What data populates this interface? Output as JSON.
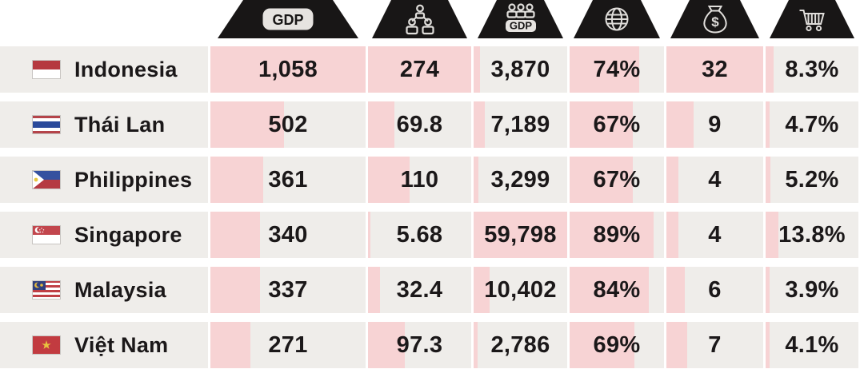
{
  "palette": {
    "page_bg": "#ffffff",
    "row_bg": "#efedea",
    "bar_pink": "#f7d3d4",
    "tab_black": "#181616",
    "icon_light": "#e0dedb",
    "text_dark": "#1b1819"
  },
  "header": {
    "tabs": [
      {
        "icon": "gdp-badge-icon",
        "badge_label": "GDP"
      },
      {
        "icon": "population-people-icon"
      },
      {
        "icon": "gdp-per-capita-icon",
        "badge_label": "GDP"
      },
      {
        "icon": "globe-icon"
      },
      {
        "icon": "money-bag-icon",
        "symbol": "$"
      },
      {
        "icon": "shopping-cart-icon"
      }
    ]
  },
  "columns": [
    {
      "id": "gdp",
      "type": "absolute",
      "max": 1058
    },
    {
      "id": "population",
      "type": "absolute",
      "max": 274
    },
    {
      "id": "gdp-per-capita",
      "type": "absolute",
      "max": 59798
    },
    {
      "id": "internet-percent",
      "type": "percent"
    },
    {
      "id": "billionaires",
      "type": "absolute",
      "max": 32
    },
    {
      "id": "ecommerce-percent",
      "type": "percent"
    }
  ],
  "rows": [
    {
      "country": "Indonesia",
      "flag": "indonesia-flag-icon",
      "flag_symbol": "flag-indonesia",
      "numeric": [
        1058,
        274,
        3870,
        74,
        32,
        8.3
      ],
      "display": [
        "1,058",
        "274",
        "3,870",
        "74%",
        "32",
        "8.3%"
      ]
    },
    {
      "country": "Thái Lan",
      "flag": "thailand-flag-icon",
      "flag_symbol": "flag-thailand",
      "numeric": [
        502,
        69.8,
        7189,
        67,
        9,
        4.7
      ],
      "display": [
        "502",
        "69.8",
        "7,189",
        "67%",
        "9",
        "4.7%"
      ]
    },
    {
      "country": "Philippines",
      "flag": "philippines-flag-icon",
      "flag_symbol": "flag-philippines",
      "numeric": [
        361,
        110,
        3299,
        67,
        4,
        5.2
      ],
      "display": [
        "361",
        "110",
        "3,299",
        "67%",
        "4",
        "5.2%"
      ]
    },
    {
      "country": "Singapore",
      "flag": "singapore-flag-icon",
      "flag_symbol": "flag-singapore",
      "numeric": [
        340,
        5.68,
        59798,
        89,
        4,
        13.8
      ],
      "display": [
        "340",
        "5.68",
        "59,798",
        "89%",
        "4",
        "13.8%"
      ]
    },
    {
      "country": "Malaysia",
      "flag": "malaysia-flag-icon",
      "flag_symbol": "flag-malaysia",
      "numeric": [
        337,
        32.4,
        10402,
        84,
        6,
        3.9
      ],
      "display": [
        "337",
        "32.4",
        "10,402",
        "84%",
        "6",
        "3.9%"
      ]
    },
    {
      "country": "Việt Nam",
      "flag": "vietnam-flag-icon",
      "flag_symbol": "flag-vietnam",
      "numeric": [
        271,
        97.3,
        2786,
        69,
        7,
        4.1
      ],
      "display": [
        "271",
        "97.3",
        "2,786",
        "69%",
        "7",
        "4.1%"
      ]
    }
  ],
  "chart_data": {
    "type": "table",
    "categories": [
      "Indonesia",
      "Thái Lan",
      "Philippines",
      "Singapore",
      "Malaysia",
      "Việt Nam"
    ],
    "series": [
      {
        "name": "GDP (badge icon)",
        "values": [
          1058,
          502,
          361,
          340,
          337,
          271
        ]
      },
      {
        "name": "Population (people icon)",
        "values": [
          274,
          69.8,
          110,
          5.68,
          32.4,
          97.3
        ]
      },
      {
        "name": "GDP per capita (people+GDP icon)",
        "values": [
          3870,
          7189,
          3299,
          59798,
          10402,
          2786
        ]
      },
      {
        "name": "Globe icon (%)",
        "values": [
          74,
          67,
          67,
          89,
          84,
          69
        ]
      },
      {
        "name": "Money-bag icon",
        "values": [
          32,
          9,
          4,
          4,
          6,
          7
        ]
      },
      {
        "name": "Shopping-cart icon (%)",
        "values": [
          8.3,
          4.7,
          5.2,
          13.8,
          3.9,
          4.1
        ]
      }
    ],
    "notes": "Pink bars behind each value are proportional data bars; absolute columns scale to column max, percent columns use the percentage of cell width."
  }
}
